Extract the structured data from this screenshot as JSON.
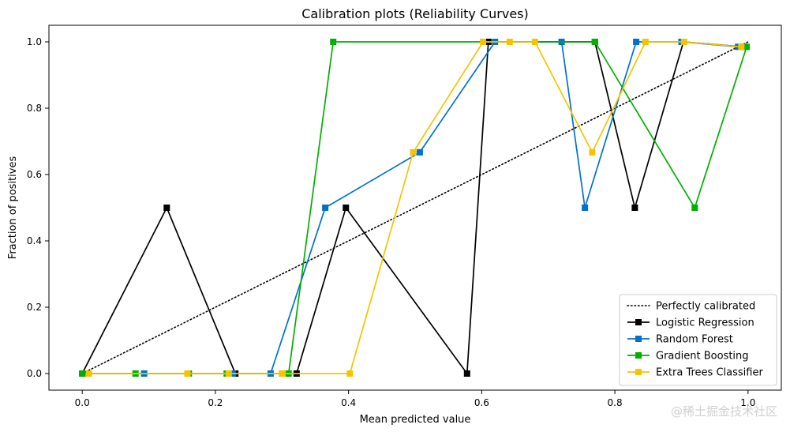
{
  "chart_data": {
    "type": "line",
    "title": "Calibration plots  (Reliability Curves)",
    "xlabel": "Mean predicted value",
    "ylabel": "Fraction of positives",
    "xlim": [
      -0.05,
      1.05
    ],
    "ylim": [
      -0.05,
      1.05
    ],
    "xticks": [
      0.0,
      0.2,
      0.4,
      0.6,
      0.8,
      1.0
    ],
    "xtick_labels": [
      "0.0",
      "0.2",
      "0.4",
      "0.6",
      "0.8",
      "1.0"
    ],
    "yticks": [
      0.0,
      0.2,
      0.4,
      0.6,
      0.8,
      1.0
    ],
    "ytick_labels": [
      "0.0",
      "0.2",
      "0.4",
      "0.6",
      "0.8",
      "1.0"
    ],
    "grid": false,
    "legend_position": "lower-right",
    "reference_line": {
      "name": "Perfectly calibrated",
      "color": "#000000",
      "style": "dotted",
      "x": [
        0.0,
        1.0
      ],
      "y": [
        0.0,
        1.0
      ]
    },
    "series": [
      {
        "name": "Logistic Regression",
        "color": "#000000",
        "marker": "square",
        "x": [
          0.0,
          0.127,
          0.23,
          0.322,
          0.396,
          0.578,
          0.61,
          0.77,
          0.83,
          0.903,
          0.993
        ],
        "y": [
          0.0,
          0.5,
          0.0,
          0.0,
          0.5,
          0.0,
          1.0,
          1.0,
          0.5,
          1.0,
          0.985
        ]
      },
      {
        "name": "Random Forest",
        "color": "#0072cc",
        "marker": "square",
        "x": [
          0.0,
          0.093,
          0.16,
          0.226,
          0.283,
          0.365,
          0.507,
          0.62,
          0.72,
          0.755,
          0.832,
          0.9,
          0.985
        ],
        "y": [
          0.0,
          0.0,
          0.0,
          0.0,
          0.0,
          0.5,
          0.667,
          1.0,
          1.0,
          0.5,
          1.0,
          1.0,
          0.985
        ]
      },
      {
        "name": "Gradient Boosting",
        "color": "#00b000",
        "marker": "square",
        "x": [
          0.0,
          0.08,
          0.16,
          0.217,
          0.31,
          0.377,
          0.77,
          0.92,
          0.998
        ],
        "y": [
          0.0,
          0.0,
          0.0,
          0.0,
          0.0,
          1.0,
          1.0,
          0.5,
          0.985
        ]
      },
      {
        "name": "Extra Trees Classifier",
        "color": "#f5c400",
        "marker": "square",
        "x": [
          0.01,
          0.158,
          0.22,
          0.3,
          0.402,
          0.497,
          0.602,
          0.642,
          0.68,
          0.766,
          0.846,
          0.904,
          0.99
        ],
        "y": [
          0.0,
          0.0,
          0.0,
          0.0,
          0.0,
          0.667,
          1.0,
          1.0,
          1.0,
          0.667,
          1.0,
          1.0,
          0.985
        ]
      }
    ]
  },
  "watermark": "@稀土掘金技术社区"
}
